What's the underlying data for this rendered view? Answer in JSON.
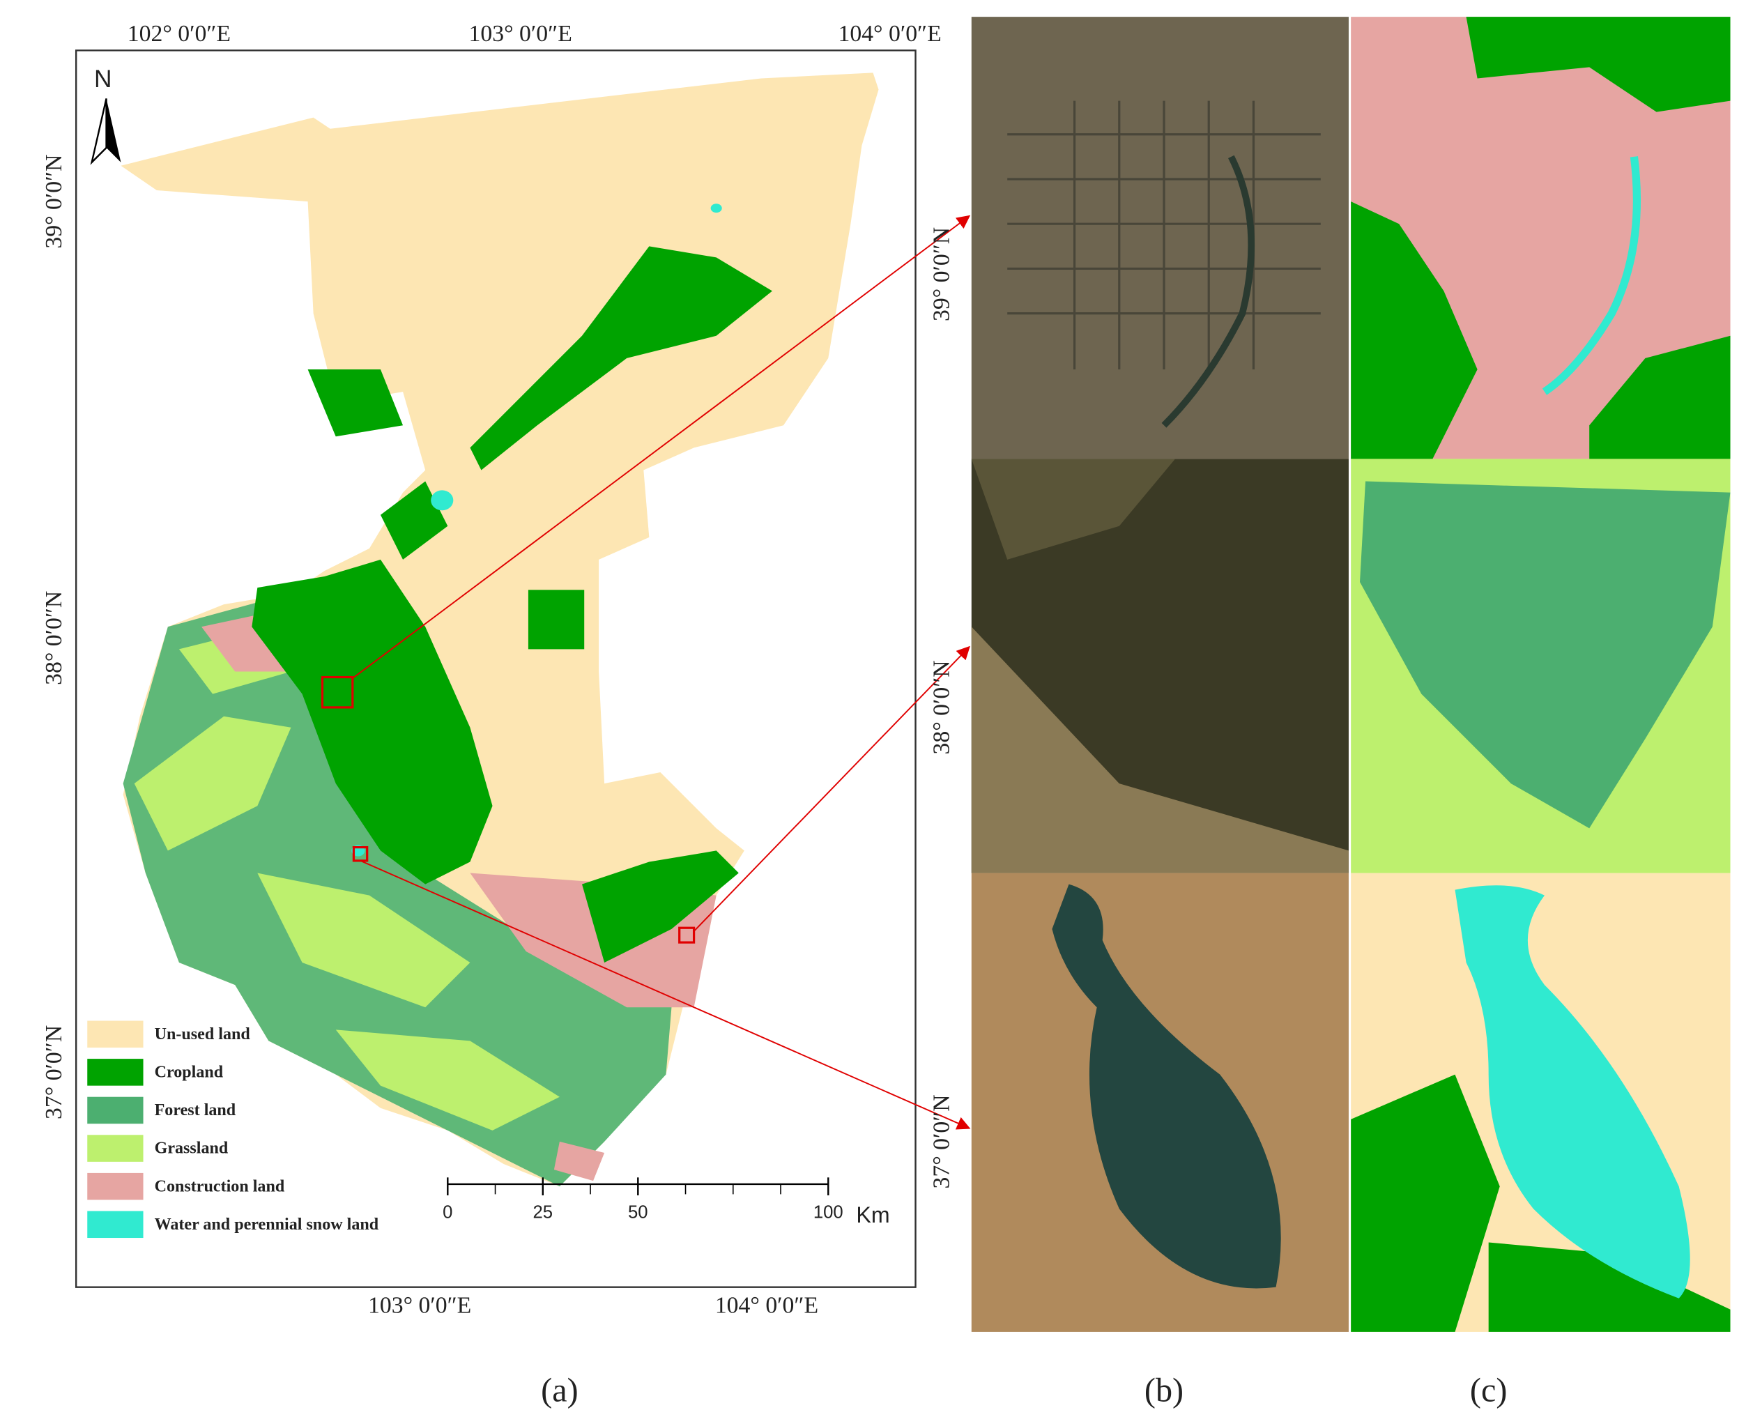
{
  "map": {
    "north": "N",
    "top_lon_labels": [
      "102° 0′0″E",
      "103° 0′0″E",
      "104° 0′0″E"
    ],
    "bottom_lon_labels": [
      "103° 0′0″E",
      "104° 0′0″E"
    ],
    "left_lat_labels": [
      "39° 0′0″N",
      "38° 0′0″N",
      "37° 0′0″N"
    ],
    "legend": [
      {
        "label": "Un-used land",
        "color": "#fde6b3"
      },
      {
        "label": "Cropland",
        "color": "#00a300"
      },
      {
        "label": "Forest land",
        "color": "#4caf70"
      },
      {
        "label": "Grassland",
        "color": "#bdf06e"
      },
      {
        "label": "Construction land",
        "color": "#e6a5a2"
      },
      {
        "label": "Water and perennial snow land",
        "color": "#30ead0"
      }
    ],
    "scale_bar": {
      "ticks": [
        0,
        25,
        50,
        100
      ],
      "unit": "Km"
    }
  },
  "inset_lat_labels": [
    "39° 0′0″N",
    "38° 0′0″N",
    "37° 0′0″N"
  ],
  "panel_labels": [
    "(a)",
    "(b)",
    "(c)"
  ]
}
